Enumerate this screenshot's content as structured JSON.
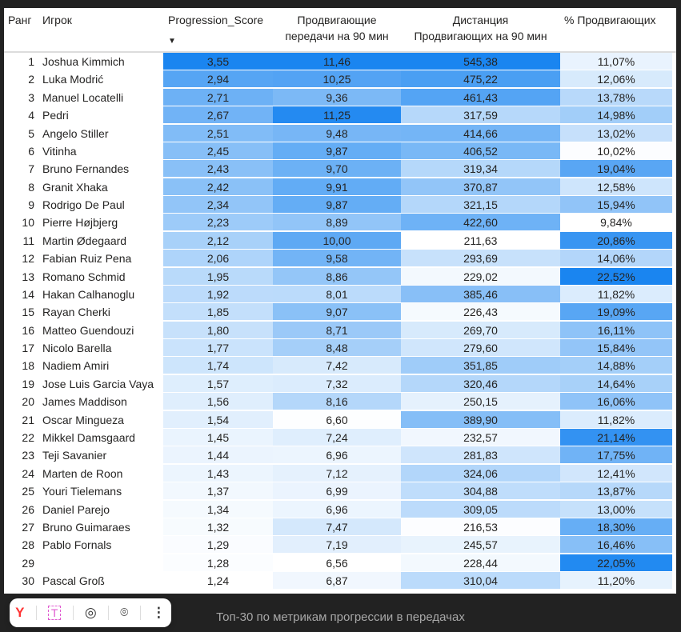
{
  "table": {
    "headers": {
      "rank": "Ранг",
      "player": "Игрок",
      "score": "Progression_Score",
      "passes_line1": "Продвигающие",
      "passes_line2": "передачи на 90 мин",
      "distance_line1": "Дистанция",
      "distance_line2": "Продвигающих на 90 мин",
      "pct": "% Продвигающих"
    },
    "sort_indicator": "▼",
    "heat_color": "#1a85f0",
    "rows": [
      {
        "rank": "1",
        "player": "Joshua Kimmich",
        "score": "3,55",
        "passes": "11,46",
        "distance": "545,38",
        "pct": "11,07%"
      },
      {
        "rank": "2",
        "player": "Luka Modrić",
        "score": "2,94",
        "passes": "10,25",
        "distance": "475,22",
        "pct": "12,06%"
      },
      {
        "rank": "3",
        "player": "Manuel Locatelli",
        "score": "2,71",
        "passes": "9,36",
        "distance": "461,43",
        "pct": "13,78%"
      },
      {
        "rank": "4",
        "player": "Pedri",
        "score": "2,67",
        "passes": "11,25",
        "distance": "317,59",
        "pct": "14,98%"
      },
      {
        "rank": "5",
        "player": "Angelo Stiller",
        "score": "2,51",
        "passes": "9,48",
        "distance": "414,66",
        "pct": "13,02%"
      },
      {
        "rank": "6",
        "player": "Vitinha",
        "score": "2,45",
        "passes": "9,87",
        "distance": "406,52",
        "pct": "10,02%"
      },
      {
        "rank": "7",
        "player": "Bruno Fernandes",
        "score": "2,43",
        "passes": "9,70",
        "distance": "319,34",
        "pct": "19,04%"
      },
      {
        "rank": "8",
        "player": "Granit Xhaka",
        "score": "2,42",
        "passes": "9,91",
        "distance": "370,87",
        "pct": "12,58%"
      },
      {
        "rank": "9",
        "player": "Rodrigo De Paul",
        "score": "2,34",
        "passes": "9,87",
        "distance": "321,15",
        "pct": "15,94%"
      },
      {
        "rank": "10",
        "player": "Pierre Højbjerg",
        "score": "2,23",
        "passes": "8,89",
        "distance": "422,60",
        "pct": "9,84%"
      },
      {
        "rank": "11",
        "player": "Martin Ødegaard",
        "score": "2,12",
        "passes": "10,00",
        "distance": "211,63",
        "pct": "20,86%"
      },
      {
        "rank": "12",
        "player": "Fabian Ruiz Pena",
        "score": "2,06",
        "passes": "9,58",
        "distance": "293,69",
        "pct": "14,06%"
      },
      {
        "rank": "13",
        "player": "Romano Schmid",
        "score": "1,95",
        "passes": "8,86",
        "distance": "229,02",
        "pct": "22,52%"
      },
      {
        "rank": "14",
        "player": "Hakan Calhanoglu",
        "score": "1,92",
        "passes": "8,01",
        "distance": "385,46",
        "pct": "11,82%"
      },
      {
        "rank": "15",
        "player": "Rayan Cherki",
        "score": "1,85",
        "passes": "9,07",
        "distance": "226,43",
        "pct": "19,09%"
      },
      {
        "rank": "16",
        "player": "Matteo Guendouzi",
        "score": "1,80",
        "passes": "8,71",
        "distance": "269,70",
        "pct": "16,11%"
      },
      {
        "rank": "17",
        "player": "Nicolo Barella",
        "score": "1,77",
        "passes": "8,48",
        "distance": "279,60",
        "pct": "15,84%"
      },
      {
        "rank": "18",
        "player": "Nadiem Amiri",
        "score": "1,74",
        "passes": "7,42",
        "distance": "351,85",
        "pct": "14,88%"
      },
      {
        "rank": "19",
        "player": "Jose Luis Garcia Vaya",
        "score": "1,57",
        "passes": "7,32",
        "distance": "320,46",
        "pct": "14,64%"
      },
      {
        "rank": "20",
        "player": "James Maddison",
        "score": "1,56",
        "passes": "8,16",
        "distance": "250,15",
        "pct": "16,06%"
      },
      {
        "rank": "21",
        "player": "Oscar Mingueza",
        "score": "1,54",
        "passes": "6,60",
        "distance": "389,90",
        "pct": "11,82%"
      },
      {
        "rank": "22",
        "player": "Mikkel Damsgaard",
        "score": "1,45",
        "passes": "7,24",
        "distance": "232,57",
        "pct": "21,14%"
      },
      {
        "rank": "23",
        "player": "Teji Savanier",
        "score": "1,44",
        "passes": "6,96",
        "distance": "281,83",
        "pct": "17,75%"
      },
      {
        "rank": "24",
        "player": "Marten de Roon",
        "score": "1,43",
        "passes": "7,12",
        "distance": "324,06",
        "pct": "12,41%"
      },
      {
        "rank": "25",
        "player": "Youri Tielemans",
        "score": "1,37",
        "passes": "6,99",
        "distance": "304,88",
        "pct": "13,87%"
      },
      {
        "rank": "26",
        "player": "Daniel Parejo",
        "score": "1,34",
        "passes": "6,96",
        "distance": "309,05",
        "pct": "13,00%"
      },
      {
        "rank": "27",
        "player": "Bruno Guimaraes",
        "score": "1,32",
        "passes": "7,47",
        "distance": "216,53",
        "pct": "18,30%"
      },
      {
        "rank": "28",
        "player": "Pablo Fornals",
        "score": "1,29",
        "passes": "7,19",
        "distance": "245,57",
        "pct": "16,46%"
      },
      {
        "rank": "29",
        "player": "",
        "score": "1,28",
        "passes": "6,56",
        "distance": "228,44",
        "pct": "22,05%"
      },
      {
        "rank": "30",
        "player": "Pascal Groß",
        "score": "1,24",
        "passes": "6,87",
        "distance": "310,04",
        "pct": "11,20%"
      }
    ]
  },
  "caption": "Топ-30 по метрикам прогрессии в передачах",
  "toolbar": {
    "icons": [
      "yandex-icon",
      "text-icon",
      "eye-icon",
      "camera-icon",
      "more-icon"
    ]
  }
}
